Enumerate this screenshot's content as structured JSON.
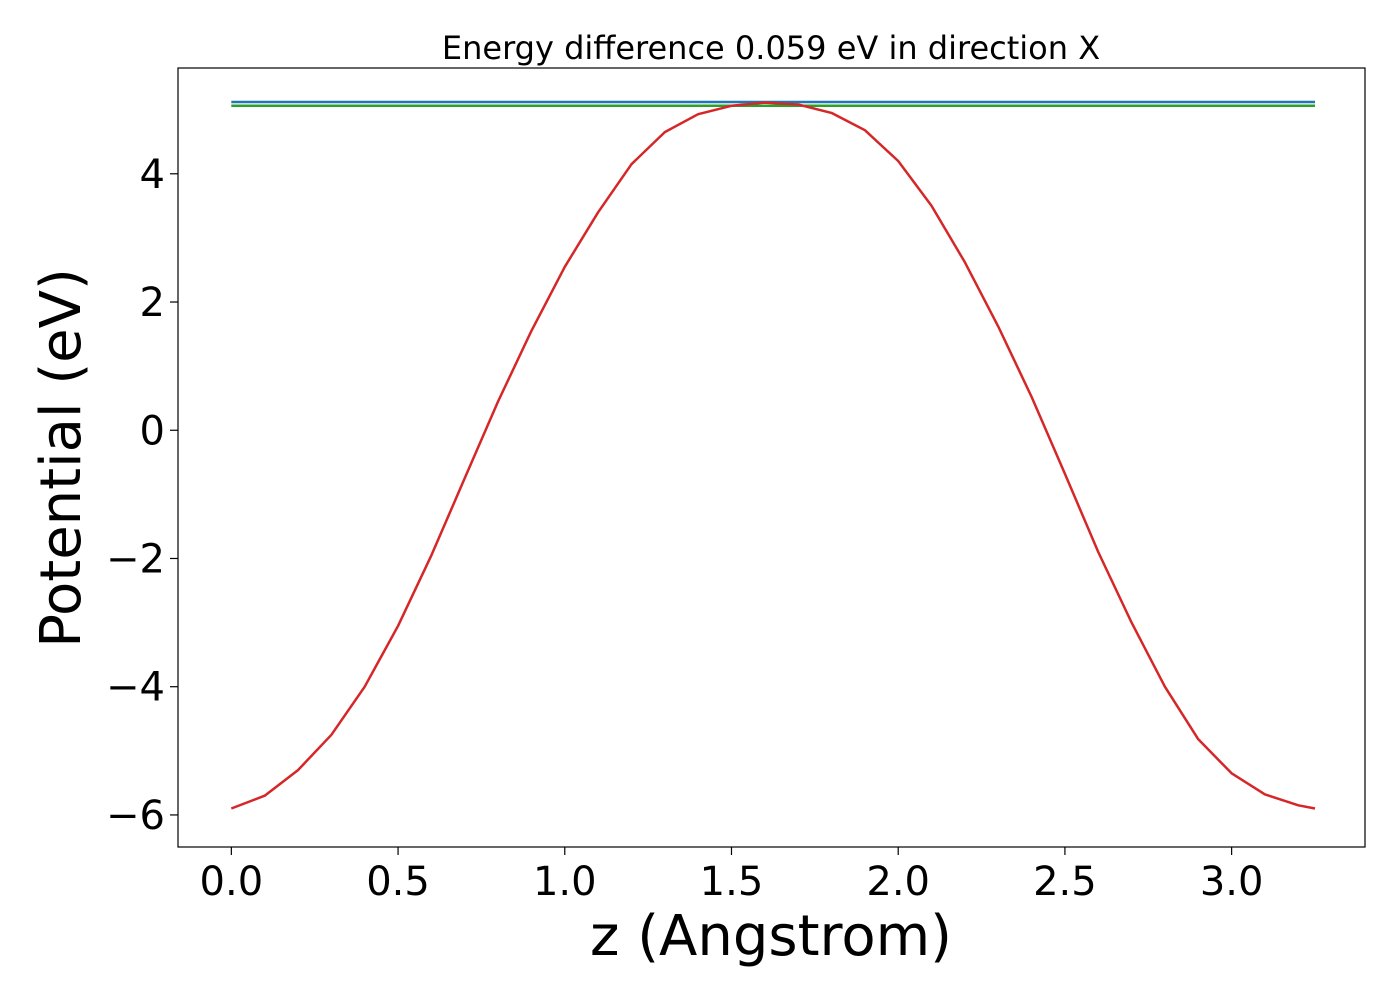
{
  "chart_data": {
    "type": "line",
    "title": "Energy difference 0.059 eV in direction X",
    "xlabel": "z (Angstrom)",
    "ylabel": "Potential (eV)",
    "xlim": [
      -0.16,
      3.4
    ],
    "ylim": [
      -6.5,
      5.65
    ],
    "xticks": [
      0.0,
      0.5,
      1.0,
      1.5,
      2.0,
      2.5,
      3.0
    ],
    "xtick_labels": [
      "0.0",
      "0.5",
      "1.0",
      "1.5",
      "2.0",
      "2.5",
      "3.0"
    ],
    "yticks": [
      -6,
      -4,
      -2,
      0,
      2,
      4
    ],
    "ytick_labels": [
      "−6",
      "−4",
      "−2",
      "0",
      "2",
      "4"
    ],
    "grid": false,
    "legend": false,
    "series": [
      {
        "color": "#1f77b4",
        "x": [
          0.0,
          3.25
        ],
        "y": [
          5.12,
          5.12
        ]
      },
      {
        "color": "#2ca02c",
        "x": [
          0.0,
          3.25
        ],
        "y": [
          5.06,
          5.06
        ]
      },
      {
        "color": "#d62728",
        "x": [
          0.0,
          0.1,
          0.2,
          0.3,
          0.4,
          0.5,
          0.6,
          0.7,
          0.8,
          0.9,
          1.0,
          1.1,
          1.2,
          1.3,
          1.4,
          1.5,
          1.6,
          1.7,
          1.8,
          1.9,
          2.0,
          2.1,
          2.2,
          2.3,
          2.4,
          2.5,
          2.6,
          2.7,
          2.8,
          2.9,
          3.0,
          3.1,
          3.2,
          3.25
        ],
        "y": [
          -5.9,
          -5.7,
          -5.3,
          -4.75,
          -4.0,
          -3.05,
          -1.95,
          -0.75,
          0.45,
          1.55,
          2.55,
          3.4,
          4.15,
          4.65,
          4.93,
          5.06,
          5.11,
          5.08,
          4.95,
          4.68,
          4.2,
          3.5,
          2.62,
          1.62,
          0.52,
          -0.68,
          -1.9,
          -3.0,
          -4.0,
          -4.82,
          -5.35,
          -5.68,
          -5.85,
          -5.9
        ]
      }
    ]
  }
}
